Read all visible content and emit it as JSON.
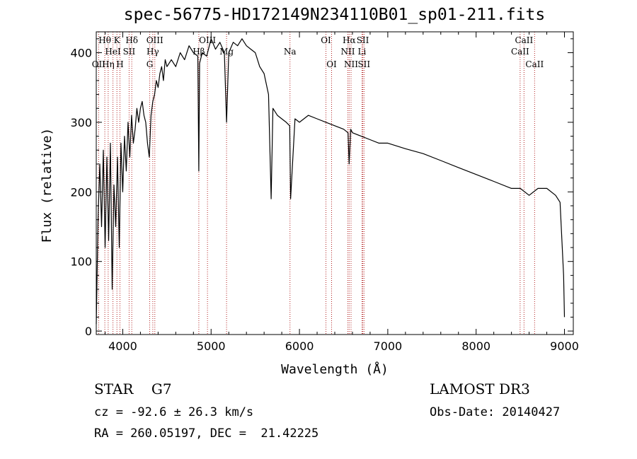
{
  "title": "spec-56775-HD172149N234110B01_sp01-211.fits",
  "footer": {
    "class_label": "STAR    G7",
    "survey": "LAMOST DR3",
    "cz": "cz = -92.6 ± 26.3 km/s",
    "obs_date": "Obs-Date: 20140427",
    "radec": "RA = 260.05197, DEC =  21.42225"
  },
  "colors": {
    "spectrum": "#000000",
    "line_markers": "#b22222",
    "axes": "#000000"
  },
  "chart_data": {
    "type": "line",
    "xlabel": "Wavelength (Å)",
    "ylabel": "Flux (relative)",
    "xlim": [
      3700,
      9100
    ],
    "ylim": [
      -5,
      430
    ],
    "grid": false,
    "xticks": [
      4000,
      5000,
      6000,
      7000,
      8000,
      9000
    ],
    "yticks": [
      0,
      100,
      200,
      300,
      400
    ],
    "xtick_labels": [
      "4000",
      "5000",
      "6000",
      "7000",
      "8000",
      "9000"
    ],
    "ytick_labels": [
      "0",
      "100",
      "200",
      "300",
      "400"
    ],
    "series": [
      {
        "x": [
          3700,
          3720,
          3740,
          3760,
          3780,
          3800,
          3820,
          3840,
          3860,
          3880,
          3900,
          3920,
          3940,
          3960,
          3980,
          4000,
          4020,
          4040,
          4060,
          4080,
          4100,
          4120,
          4140,
          4160,
          4180,
          4200,
          4220,
          4240,
          4260,
          4280,
          4300,
          4320,
          4340,
          4360,
          4380,
          4400,
          4420,
          4440,
          4460,
          4480,
          4500,
          4550,
          4600,
          4650,
          4700,
          4750,
          4800,
          4850,
          4861,
          4870,
          4900,
          4950,
          5000,
          5050,
          5100,
          5150,
          5175,
          5200,
          5250,
          5300,
          5350,
          5400,
          5450,
          5500,
          5550,
          5600,
          5650,
          5680,
          5700,
          5750,
          5800,
          5850,
          5890,
          5900,
          5950,
          6000,
          6100,
          6200,
          6300,
          6400,
          6500,
          6550,
          6563,
          6580,
          6600,
          6700,
          6800,
          6900,
          7000,
          7200,
          7400,
          7600,
          7800,
          8000,
          8200,
          8400,
          8500,
          8600,
          8700,
          8800,
          8900,
          8950,
          8990,
          9000
        ],
        "y": [
          10,
          160,
          240,
          150,
          260,
          120,
          250,
          130,
          270,
          60,
          210,
          150,
          250,
          120,
          270,
          200,
          280,
          230,
          300,
          250,
          310,
          270,
          290,
          320,
          300,
          320,
          330,
          310,
          300,
          270,
          250,
          310,
          330,
          340,
          360,
          350,
          370,
          380,
          360,
          390,
          380,
          390,
          380,
          400,
          390,
          410,
          400,
          395,
          230,
          385,
          400,
          395,
          420,
          405,
          415,
          400,
          300,
          400,
          415,
          410,
          420,
          410,
          405,
          400,
          380,
          370,
          340,
          190,
          320,
          310,
          305,
          300,
          295,
          190,
          305,
          300,
          310,
          305,
          300,
          295,
          290,
          285,
          240,
          290,
          285,
          280,
          275,
          270,
          270,
          262,
          255,
          245,
          235,
          225,
          215,
          205,
          205,
          195,
          205,
          205,
          195,
          185,
          80,
          20
        ]
      }
    ],
    "line_labels": [
      {
        "text": "Hθ",
        "x": 3797
      },
      {
        "text": "Hη",
        "x": 3835
      },
      {
        "text": "OII",
        "x": 3727
      },
      {
        "text": "HeI",
        "x": 3889
      },
      {
        "text": "K",
        "x": 3934
      },
      {
        "text": "H",
        "x": 3968
      },
      {
        "text": "SII",
        "x": 4072
      },
      {
        "text": "Hδ",
        "x": 4102
      },
      {
        "text": "OIII",
        "x": 4363
      },
      {
        "text": "Hγ",
        "x": 4340
      },
      {
        "text": "G",
        "x": 4305
      },
      {
        "text": "OIII",
        "x": 4959
      },
      {
        "text": "Hβ",
        "x": 4861
      },
      {
        "text": "Mg",
        "x": 5175
      },
      {
        "text": "Na",
        "x": 5893
      },
      {
        "text": "OI",
        "x": 6300
      },
      {
        "text": "OI",
        "x": 6364
      },
      {
        "text": "Hα",
        "x": 6563
      },
      {
        "text": "NII",
        "x": 6548
      },
      {
        "text": "NII",
        "x": 6584
      },
      {
        "text": "SII",
        "x": 6717
      },
      {
        "text": "SII",
        "x": 6731
      },
      {
        "text": "Li",
        "x": 6708
      },
      {
        "text": "CaII",
        "x": 8498
      },
      {
        "text": "CaII",
        "x": 8542
      },
      {
        "text": "CaII",
        "x": 8662
      }
    ]
  }
}
